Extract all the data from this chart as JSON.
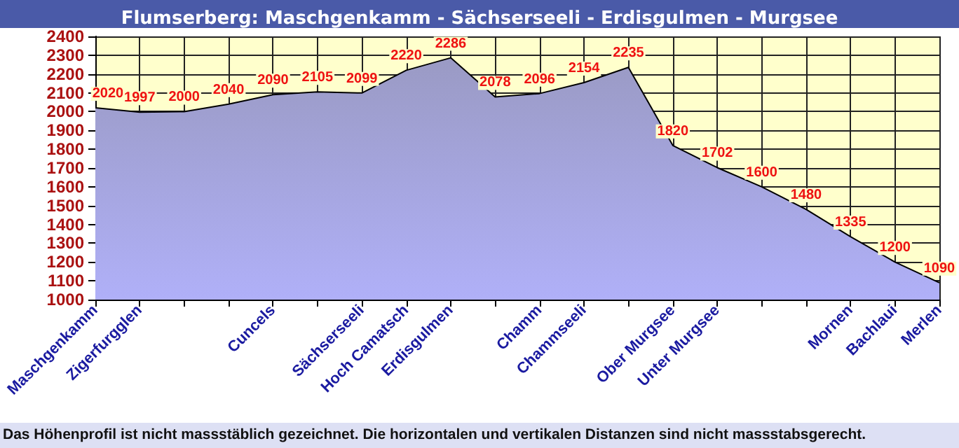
{
  "chart_data": {
    "type": "area",
    "title": "Flumserberg: Maschgenkamm - Sächserseeli - Erdisgulmen - Murgsee",
    "categories": [
      "Maschgenkamm",
      "Zigerfurgglen",
      null,
      null,
      "Cuncels",
      null,
      "Sächserseeli",
      "Hoch Camatsch",
      "Erdisgulmen",
      null,
      "Chamm",
      "Chammseeli",
      null,
      "Ober Murgsee",
      "Unter Murgsee",
      null,
      null,
      "Mornen",
      "Bachlaui",
      "Merlen"
    ],
    "series": [
      {
        "color": "#9a9ac4",
        "values": [
          2020,
          1997,
          2000,
          2040,
          2090,
          2105,
          2099,
          2220,
          2286,
          2078,
          2096,
          2154,
          2235,
          1820,
          1702,
          1600,
          1480,
          1335,
          1200,
          1090
        ]
      }
    ],
    "ylim": [
      1000,
      2400
    ],
    "yticks": [
      1000,
      1100,
      1200,
      1300,
      1400,
      1500,
      1600,
      1700,
      1800,
      1900,
      2000,
      2100,
      2200,
      2300,
      2400
    ],
    "grid": true,
    "data_labels": true,
    "marker": "none",
    "annotations": [
      "Das Höhenprofil ist nicht massstäblich gezeichnet. Die horizontalen und vertikalen Distanzen sind nicht massstabsgerecht."
    ]
  }
}
